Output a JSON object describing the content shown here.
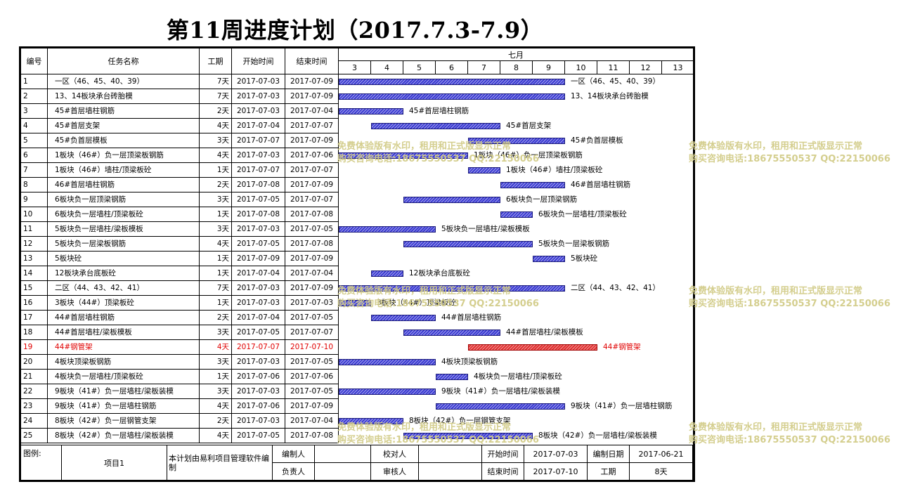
{
  "title": "第11周进度计划（2017.7.3-7.9）",
  "headers": {
    "no": "编号",
    "name": "任务名称",
    "duration": "工期",
    "start": "开始时间",
    "end": "结束时间",
    "month": "七月"
  },
  "days": [
    "3",
    "4",
    "5",
    "6",
    "7",
    "8",
    "9",
    "10",
    "11",
    "12",
    "13"
  ],
  "colors": {
    "bar": "#3a3ad2",
    "bar_highlight": "#e03030",
    "text_highlight": "#e00000",
    "watermark": "#d2cc88"
  },
  "tasks": [
    {
      "no": "1",
      "name": "一区（46、45、40、39）",
      "duration": "7天",
      "start": "2017-07-03",
      "end": "2017-07-09",
      "label": "一区（46、45、40、39）",
      "startDay": 3,
      "endDay": 9
    },
    {
      "no": "2",
      "name": "13、14板块承台砖胎模",
      "duration": "7天",
      "start": "2017-07-03",
      "end": "2017-07-09",
      "label": "13、14板块承台砖胎模",
      "startDay": 3,
      "endDay": 9
    },
    {
      "no": "3",
      "name": "45#首层墙柱钢筋",
      "duration": "2天",
      "start": "2017-07-03",
      "end": "2017-07-04",
      "label": "45#首层墙柱钢筋",
      "startDay": 3,
      "endDay": 4
    },
    {
      "no": "4",
      "name": "45#首层支架",
      "duration": "4天",
      "start": "2017-07-04",
      "end": "2017-07-07",
      "label": "45#首层支架",
      "startDay": 4,
      "endDay": 7
    },
    {
      "no": "5",
      "name": "45#负首层模板",
      "duration": "3天",
      "start": "2017-07-07",
      "end": "2017-07-09",
      "label": "45#负首层模板",
      "startDay": 7,
      "endDay": 9
    },
    {
      "no": "6",
      "name": "1板块（46#）负一层顶梁板钢筋",
      "duration": "4天",
      "start": "2017-07-03",
      "end": "2017-07-06",
      "label": "1板块（46#）负一层顶梁板钢筋",
      "startDay": 3,
      "endDay": 6
    },
    {
      "no": "7",
      "name": "1板块（46#）墙柱/顶梁板砼",
      "duration": "1天",
      "start": "2017-07-07",
      "end": "2017-07-07",
      "label": "1板块（46#）墙柱/顶梁板砼",
      "startDay": 7,
      "endDay": 7
    },
    {
      "no": "8",
      "name": "46#首层墙柱钢筋",
      "duration": "2天",
      "start": "2017-07-08",
      "end": "2017-07-09",
      "label": "46#首层墙柱钢筋",
      "startDay": 8,
      "endDay": 9
    },
    {
      "no": "9",
      "name": "6板块负一层顶梁钢筋",
      "duration": "3天",
      "start": "2017-07-05",
      "end": "2017-07-07",
      "label": "6板块负一层顶梁钢筋",
      "startDay": 5,
      "endDay": 7
    },
    {
      "no": "10",
      "name": "6板块负一层墙柱/顶梁板砼",
      "duration": "1天",
      "start": "2017-07-08",
      "end": "2017-07-08",
      "label": "6板块负一层墙柱/顶梁板砼",
      "startDay": 8,
      "endDay": 8
    },
    {
      "no": "11",
      "name": "5板块负一层墙柱/梁板模板",
      "duration": "3天",
      "start": "2017-07-03",
      "end": "2017-07-05",
      "label": "5板块负一层墙柱/梁板模板",
      "startDay": 3,
      "endDay": 5
    },
    {
      "no": "12",
      "name": "5板块负一层梁板钢筋",
      "duration": "4天",
      "start": "2017-07-05",
      "end": "2017-07-08",
      "label": "5板块负一层梁板钢筋",
      "startDay": 5,
      "endDay": 8
    },
    {
      "no": "13",
      "name": "5板块砼",
      "duration": "1天",
      "start": "2017-07-09",
      "end": "2017-07-09",
      "label": "5板块砼",
      "startDay": 9,
      "endDay": 9
    },
    {
      "no": "14",
      "name": "12板块承台底板砼",
      "duration": "1天",
      "start": "2017-07-04",
      "end": "2017-07-04",
      "label": "12板块承台底板砼",
      "startDay": 4,
      "endDay": 4
    },
    {
      "no": "15",
      "name": "二区（44、43、42、41）",
      "duration": "7天",
      "start": "2017-07-03",
      "end": "2017-07-09",
      "label": "二区（44、43、42、41）",
      "startDay": 3,
      "endDay": 9
    },
    {
      "no": "16",
      "name": "3板块（44#）顶梁板砼",
      "duration": "1天",
      "start": "2017-07-03",
      "end": "2017-07-03",
      "label": "3板块（44#）顶梁板砼",
      "startDay": 3,
      "endDay": 3
    },
    {
      "no": "17",
      "name": "44#首层墙柱钢筋",
      "duration": "2天",
      "start": "2017-07-04",
      "end": "2017-07-05",
      "label": "44#首层墙柱钢筋",
      "startDay": 4,
      "endDay": 5
    },
    {
      "no": "18",
      "name": "44#首层墙柱/梁板模板",
      "duration": "3天",
      "start": "2017-07-05",
      "end": "2017-07-07",
      "label": "44#首层墙柱/梁板模板",
      "startDay": 5,
      "endDay": 7
    },
    {
      "no": "19",
      "name": "44#钢管架",
      "duration": "4天",
      "start": "2017-07-07",
      "end": "2017-07-10",
      "label": "44#钢管架",
      "startDay": 7,
      "endDay": 10,
      "highlight": true
    },
    {
      "no": "20",
      "name": "4板块顶梁板钢筋",
      "duration": "3天",
      "start": "2017-07-03",
      "end": "2017-07-05",
      "label": "4板块顶梁板钢筋",
      "startDay": 3,
      "endDay": 5
    },
    {
      "no": "21",
      "name": "4板块负一层墙柱/顶梁板砼",
      "duration": "1天",
      "start": "2017-07-06",
      "end": "2017-07-06",
      "label": "4板块负一层墙柱/顶梁板砼",
      "startDay": 6,
      "endDay": 6
    },
    {
      "no": "22",
      "name": "9板块（41#）负一层墙柱/梁板装模",
      "duration": "3天",
      "start": "2017-07-03",
      "end": "2017-07-05",
      "label": "9板块（41#）负一层墙柱/梁板装模",
      "startDay": 3,
      "endDay": 5
    },
    {
      "no": "23",
      "name": "9板块（41#）负一层墙柱钢筋",
      "duration": "4天",
      "start": "2017-07-06",
      "end": "2017-07-09",
      "label": "9板块（41#）负一层墙柱钢筋",
      "startDay": 6,
      "endDay": 9
    },
    {
      "no": "24",
      "name": "8板块（42#）负一层钢管支架",
      "duration": "2天",
      "start": "2017-07-03",
      "end": "2017-07-04",
      "label": "8板块（42#）负一层钢管支架",
      "startDay": 3,
      "endDay": 4
    },
    {
      "no": "25",
      "name": "8板块（42#）负一层墙柱/梁板装模",
      "duration": "4天",
      "start": "2017-07-05",
      "end": "2017-07-08",
      "label": "8板块（42#）负一层墙柱/梁板装模",
      "startDay": 5,
      "endDay": 8
    }
  ],
  "footer": {
    "legend_label": "图例:",
    "project": "项目1",
    "note": "本计划由易利项目管理软件编制",
    "compiler_label": "编制人",
    "compiler_value": "",
    "checker_label": "校对人",
    "checker_value": "",
    "owner_label": "负责人",
    "owner_value": "",
    "reviewer_label": "审核人",
    "reviewer_value": "",
    "start_label": "开始时间",
    "start_value": "2017-07-03",
    "end_label": "结束时间",
    "end_value": "2017-07-10",
    "date_label": "编制日期",
    "date_value": "2017-06-21",
    "duration_label": "工期",
    "duration_value": "8天"
  },
  "watermark": {
    "line1": "免费体验版有水印，租用和正式版显示正常",
    "line2": "购买咨询电话:18675550537 QQ:22150066"
  }
}
